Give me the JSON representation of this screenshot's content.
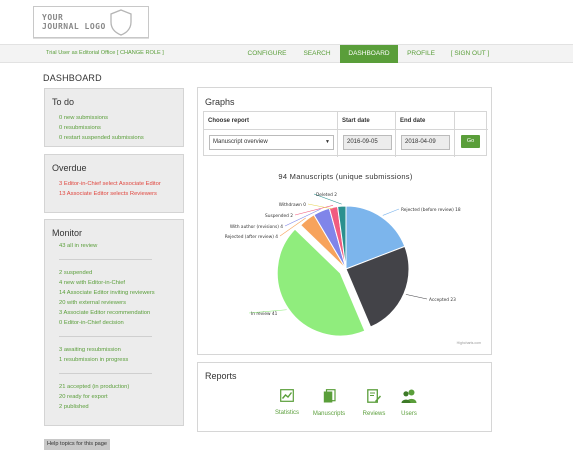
{
  "logo": {
    "line1": "YOUR",
    "line2": "JOURNAL LOGO"
  },
  "topbar": {
    "trial_text": "Trial User as Editorial Office [ CHANGE ROLE ]",
    "nav": [
      {
        "label": "CONFIGURE",
        "active": false
      },
      {
        "label": "SEARCH",
        "active": false
      },
      {
        "label": "DASHBOARD",
        "active": true
      },
      {
        "label": "PROFILE",
        "active": false
      },
      {
        "label": "[ SIGN OUT ]",
        "active": false
      }
    ]
  },
  "page_title": "DASHBOARD",
  "todo": {
    "title": "To do",
    "items": [
      "0 new submissions",
      "0 resubmissions",
      "0 restart suspended submissions"
    ]
  },
  "overdue": {
    "title": "Overdue",
    "items": [
      "3 Editor-in-Chief select Associate Editor",
      "13 Associate Editor selects Reviewers"
    ]
  },
  "monitor": {
    "title": "Monitor",
    "groups": [
      [
        "43 all in review"
      ],
      [
        "2 suspended",
        "4 new with Editor-in-Chief",
        "14 Associate Editor inviting reviewers",
        "20 with external reviewers",
        "3 Associate Editor recommendation",
        "0 Editor-in-Chief decision"
      ],
      [
        "3 awaiting resubmission",
        "1 resubmission in progress"
      ],
      [
        "21 accepted (in production)",
        "20 ready for export",
        "2 published"
      ]
    ]
  },
  "graphs": {
    "title": "Graphs",
    "headers": {
      "report": "Choose report",
      "start": "Start date",
      "end": "End date"
    },
    "report_value": "Manuscript overview",
    "start_value": "2016-09-05",
    "end_value": "2018-04-09",
    "go_label": "Go",
    "credits": "Highcharts.com"
  },
  "chart_data": {
    "type": "pie",
    "title": "94 Manuscripts (unique submissions)",
    "slices": [
      {
        "label": "Rejected (before review)",
        "value": 18,
        "color": "#7cb5ec"
      },
      {
        "label": "Accepted",
        "value": 23,
        "color": "#434348"
      },
      {
        "label": "In review",
        "value": 41,
        "color": "#90ed7d"
      },
      {
        "label": "Rejected (after review)",
        "value": 4,
        "color": "#f7a35c"
      },
      {
        "label": "With author (revisions)",
        "value": 4,
        "color": "#8085e9"
      },
      {
        "label": "Suspended",
        "value": 2,
        "color": "#f15c80"
      },
      {
        "label": "Withdrawn",
        "value": 0,
        "color": "#e4d354"
      },
      {
        "label": "Deleted",
        "value": 2,
        "color": "#2b908f"
      }
    ]
  },
  "reports": {
    "title": "Reports",
    "items": [
      {
        "label": "Statistics",
        "icon": "chart-icon"
      },
      {
        "label": "Manuscripts",
        "icon": "documents-icon"
      },
      {
        "label": "Reviews",
        "icon": "review-icon"
      },
      {
        "label": "Users",
        "icon": "users-icon"
      }
    ]
  },
  "help_label": "Help topics for this page",
  "colors": {
    "accent": "#5a9e3a",
    "alert": "#e0463e",
    "panel": "#ececec"
  }
}
